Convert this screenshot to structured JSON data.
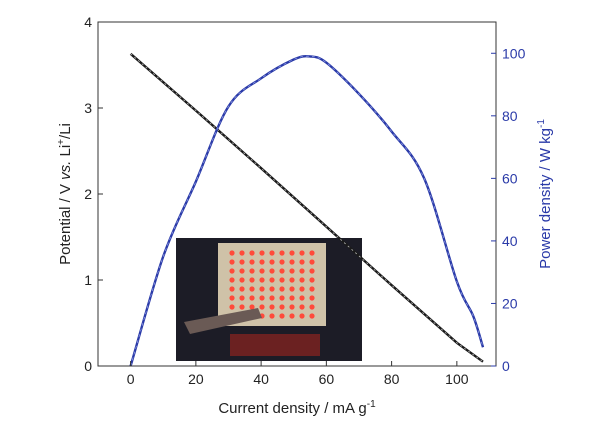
{
  "chart_data": {
    "type": "line",
    "xlabel_parts": [
      "Current density / mA g",
      "-1"
    ],
    "ylabel_parts": [
      "Potential / V ",
      "vs.",
      " Li",
      "+",
      "/Li"
    ],
    "y2label_parts": [
      "Power density / W kg",
      "-1"
    ],
    "xlim": [
      -10,
      112
    ],
    "ylim": [
      0,
      4
    ],
    "y2lim": [
      0,
      110
    ],
    "x_ticks": [
      0,
      20,
      40,
      60,
      80,
      100
    ],
    "y_ticks": [
      0,
      1,
      2,
      3,
      4
    ],
    "y2_ticks": [
      0,
      20,
      40,
      60,
      80,
      100
    ],
    "grid": false,
    "legend": "none",
    "series": [
      {
        "axis": "left",
        "color": "#1a1a1a",
        "x": [
          0,
          20,
          40,
          60,
          80,
          100,
          108
        ],
        "y": [
          3.63,
          2.97,
          2.3,
          1.62,
          0.94,
          0.27,
          0.05
        ]
      },
      {
        "axis": "right",
        "color": "#2a3aa8",
        "x": [
          0,
          10,
          20,
          30,
          40,
          50,
          55,
          60,
          70,
          80,
          90,
          100,
          105,
          108
        ],
        "y": [
          0,
          35,
          59,
          83,
          92,
          98,
          99,
          97,
          87,
          75,
          60,
          27,
          16,
          6
        ]
      }
    ],
    "inset": {
      "type": "photo",
      "subject": "led-array-lit",
      "colors": {
        "background": "#1c1c26",
        "panel": "#cfc2a8",
        "led": "#ff4a3a",
        "glow": "#ff2a1a"
      },
      "rows": 8,
      "cols": 9
    }
  }
}
